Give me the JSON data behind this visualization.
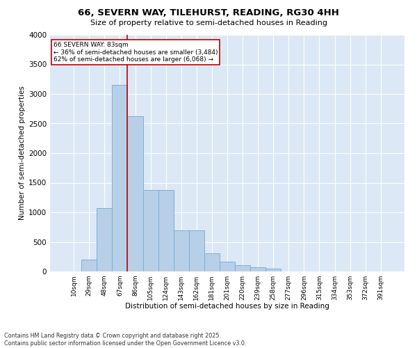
{
  "title1": "66, SEVERN WAY, TILEHURST, READING, RG30 4HH",
  "title2": "Size of property relative to semi-detached houses in Reading",
  "xlabel": "Distribution of semi-detached houses by size in Reading",
  "ylabel": "Number of semi-detached properties",
  "categories": [
    "10sqm",
    "29sqm",
    "48sqm",
    "67sqm",
    "86sqm",
    "105sqm",
    "124sqm",
    "143sqm",
    "162sqm",
    "181sqm",
    "201sqm",
    "220sqm",
    "239sqm",
    "258sqm",
    "277sqm",
    "296sqm",
    "315sqm",
    "334sqm",
    "353sqm",
    "372sqm",
    "391sqm"
  ],
  "values": [
    0,
    200,
    1075,
    3150,
    2625,
    1380,
    1380,
    700,
    700,
    310,
    160,
    110,
    70,
    50,
    0,
    0,
    0,
    0,
    0,
    0,
    0
  ],
  "bar_color": "#b8cfe8",
  "bar_edge_color": "#7aafd4",
  "vline_color": "#bb0000",
  "property_label": "66 SEVERN WAY: 83sqm",
  "annotation_left": "← 36% of semi-detached houses are smaller (3,484)",
  "annotation_right": "62% of semi-detached houses are larger (6,068) →",
  "box_edge_color": "#bb0000",
  "ylim": [
    0,
    4000
  ],
  "yticks": [
    0,
    500,
    1000,
    1500,
    2000,
    2500,
    3000,
    3500,
    4000
  ],
  "footnote1": "Contains HM Land Registry data © Crown copyright and database right 2025.",
  "footnote2": "Contains public sector information licensed under the Open Government Licence v3.0.",
  "bg_color": "#dce8f5",
  "fig_bg_color": "#ffffff"
}
